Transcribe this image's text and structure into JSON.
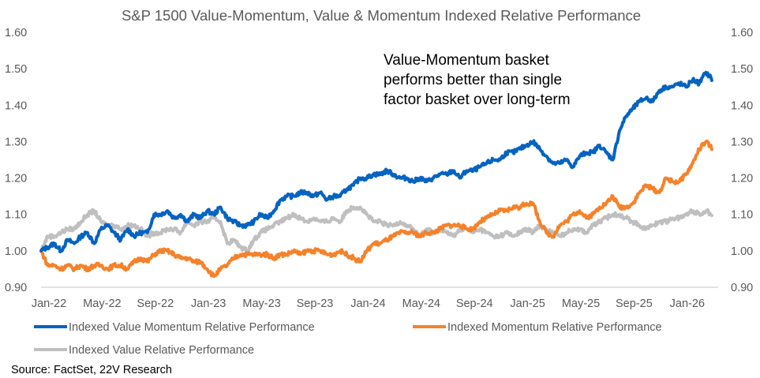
{
  "chart_data": {
    "type": "line",
    "title": "S&P 1500 Value-Momentum, Value & Momentum Indexed Relative Performance",
    "xlabel": "",
    "ylabel": "",
    "ylim": [
      0.9,
      1.6
    ],
    "y_ticks": [
      "0.90",
      "1.00",
      "1.10",
      "1.20",
      "1.30",
      "1.40",
      "1.50",
      "1.60"
    ],
    "y_ticks_right": [
      "0.90",
      "1.00",
      "1.10",
      "1.20",
      "1.30",
      "1.40",
      "1.50",
      "1.60"
    ],
    "x_ticks": [
      "Jan-22",
      "May-22",
      "Sep-22",
      "Jan-23",
      "May-23",
      "Sep-23",
      "Jan-24",
      "May-24",
      "Sep-24",
      "Jan-25",
      "May-25",
      "Sep-25",
      "Jan-26"
    ],
    "x_range_months": [
      0,
      50.5
    ],
    "grid": false,
    "legend_position": "bottom",
    "annotation": [
      "Value-Momentum basket",
      "performs better than single",
      "factor basket over long-term"
    ],
    "source": "Source: FactSet, 22V Research",
    "x_months": [
      0,
      0.5,
      1,
      1.5,
      2,
      2.5,
      3,
      3.5,
      4,
      4.5,
      5,
      5.5,
      6,
      6.5,
      7,
      7.5,
      8,
      8.5,
      9,
      9.5,
      10,
      10.5,
      11,
      11.5,
      12,
      12.5,
      13,
      13.5,
      14,
      14.5,
      15,
      15.5,
      16,
      16.5,
      17,
      17.5,
      18,
      18.5,
      19,
      19.5,
      20,
      20.5,
      21,
      21.5,
      22,
      22.5,
      23,
      23.5,
      24,
      24.5,
      25,
      25.5,
      26,
      26.5,
      27,
      27.5,
      28,
      28.5,
      29,
      29.5,
      30,
      30.5,
      31,
      31.5,
      32,
      32.5,
      33,
      33.5,
      34,
      34.5,
      35,
      35.5,
      36,
      36.5,
      37,
      37.5,
      38,
      38.5,
      39,
      39.5,
      40,
      40.5,
      41,
      41.5,
      42,
      42.5,
      43,
      43.5,
      44,
      44.5,
      45,
      45.5,
      46,
      46.5,
      47,
      47.5,
      48,
      48.5,
      49,
      49.5,
      50,
      50.5
    ],
    "series": [
      {
        "name": "Indexed Value Momentum Relative Performance",
        "color": "#0563C1",
        "values": [
          1.0,
          1.01,
          1.02,
          1.0,
          1.03,
          1.02,
          1.04,
          1.05,
          1.02,
          1.06,
          1.07,
          1.05,
          1.03,
          1.06,
          1.04,
          1.05,
          1.05,
          1.1,
          1.1,
          1.11,
          1.09,
          1.1,
          1.08,
          1.1,
          1.09,
          1.11,
          1.1,
          1.12,
          1.09,
          1.08,
          1.07,
          1.07,
          1.08,
          1.1,
          1.09,
          1.11,
          1.14,
          1.15,
          1.15,
          1.16,
          1.16,
          1.15,
          1.16,
          1.14,
          1.15,
          1.15,
          1.17,
          1.18,
          1.2,
          1.2,
          1.21,
          1.21,
          1.22,
          1.21,
          1.2,
          1.2,
          1.19,
          1.2,
          1.19,
          1.2,
          1.21,
          1.21,
          1.22,
          1.2,
          1.22,
          1.22,
          1.23,
          1.24,
          1.25,
          1.25,
          1.27,
          1.27,
          1.28,
          1.29,
          1.3,
          1.28,
          1.26,
          1.24,
          1.24,
          1.25,
          1.23,
          1.26,
          1.27,
          1.27,
          1.29,
          1.27,
          1.25,
          1.33,
          1.37,
          1.39,
          1.41,
          1.42,
          1.41,
          1.44,
          1.45,
          1.45,
          1.46,
          1.45,
          1.47,
          1.46,
          1.49,
          1.47,
          1.46
        ]
      },
      {
        "name": "Indexed Momentum Relative Performance",
        "color": "#F5822A",
        "values": [
          1.0,
          0.96,
          0.96,
          0.95,
          0.96,
          0.95,
          0.96,
          0.95,
          0.96,
          0.96,
          0.95,
          0.96,
          0.96,
          0.95,
          0.97,
          0.98,
          0.97,
          0.99,
          1.0,
          1.0,
          0.99,
          0.98,
          0.98,
          0.97,
          0.97,
          0.95,
          0.93,
          0.95,
          0.96,
          0.98,
          0.99,
          0.99,
          0.99,
          0.99,
          0.99,
          0.98,
          0.99,
          0.99,
          1.0,
          0.99,
          1.0,
          1.0,
          1.0,
          0.99,
          0.99,
          1.0,
          0.99,
          0.98,
          0.97,
          1.0,
          1.02,
          1.02,
          1.03,
          1.04,
          1.05,
          1.05,
          1.05,
          1.04,
          1.05,
          1.05,
          1.06,
          1.07,
          1.07,
          1.07,
          1.06,
          1.06,
          1.08,
          1.09,
          1.1,
          1.11,
          1.11,
          1.12,
          1.12,
          1.13,
          1.13,
          1.08,
          1.05,
          1.04,
          1.07,
          1.08,
          1.1,
          1.11,
          1.09,
          1.1,
          1.12,
          1.13,
          1.15,
          1.12,
          1.12,
          1.13,
          1.16,
          1.18,
          1.17,
          1.16,
          1.2,
          1.19,
          1.19,
          1.21,
          1.24,
          1.28,
          1.3,
          1.28,
          1.29
        ]
      },
      {
        "name": "Indexed Value Relative Performance",
        "color": "#BFBFBF",
        "values": [
          1.0,
          1.04,
          1.04,
          1.05,
          1.06,
          1.06,
          1.08,
          1.1,
          1.11,
          1.08,
          1.07,
          1.07,
          1.06,
          1.07,
          1.07,
          1.06,
          1.04,
          1.05,
          1.05,
          1.06,
          1.06,
          1.05,
          1.08,
          1.07,
          1.08,
          1.08,
          1.09,
          1.08,
          1.02,
          1.03,
          1.01,
          1.0,
          1.03,
          1.05,
          1.06,
          1.07,
          1.08,
          1.09,
          1.1,
          1.09,
          1.08,
          1.09,
          1.08,
          1.08,
          1.09,
          1.08,
          1.11,
          1.12,
          1.12,
          1.1,
          1.08,
          1.08,
          1.07,
          1.07,
          1.08,
          1.07,
          1.06,
          1.04,
          1.06,
          1.05,
          1.06,
          1.05,
          1.04,
          1.06,
          1.06,
          1.05,
          1.06,
          1.05,
          1.04,
          1.04,
          1.05,
          1.04,
          1.05,
          1.06,
          1.05,
          1.07,
          1.06,
          1.05,
          1.04,
          1.05,
          1.06,
          1.06,
          1.05,
          1.07,
          1.08,
          1.09,
          1.1,
          1.1,
          1.09,
          1.08,
          1.07,
          1.06,
          1.07,
          1.08,
          1.08,
          1.09,
          1.09,
          1.1,
          1.11,
          1.1,
          1.11,
          1.1,
          1.1
        ]
      }
    ]
  }
}
